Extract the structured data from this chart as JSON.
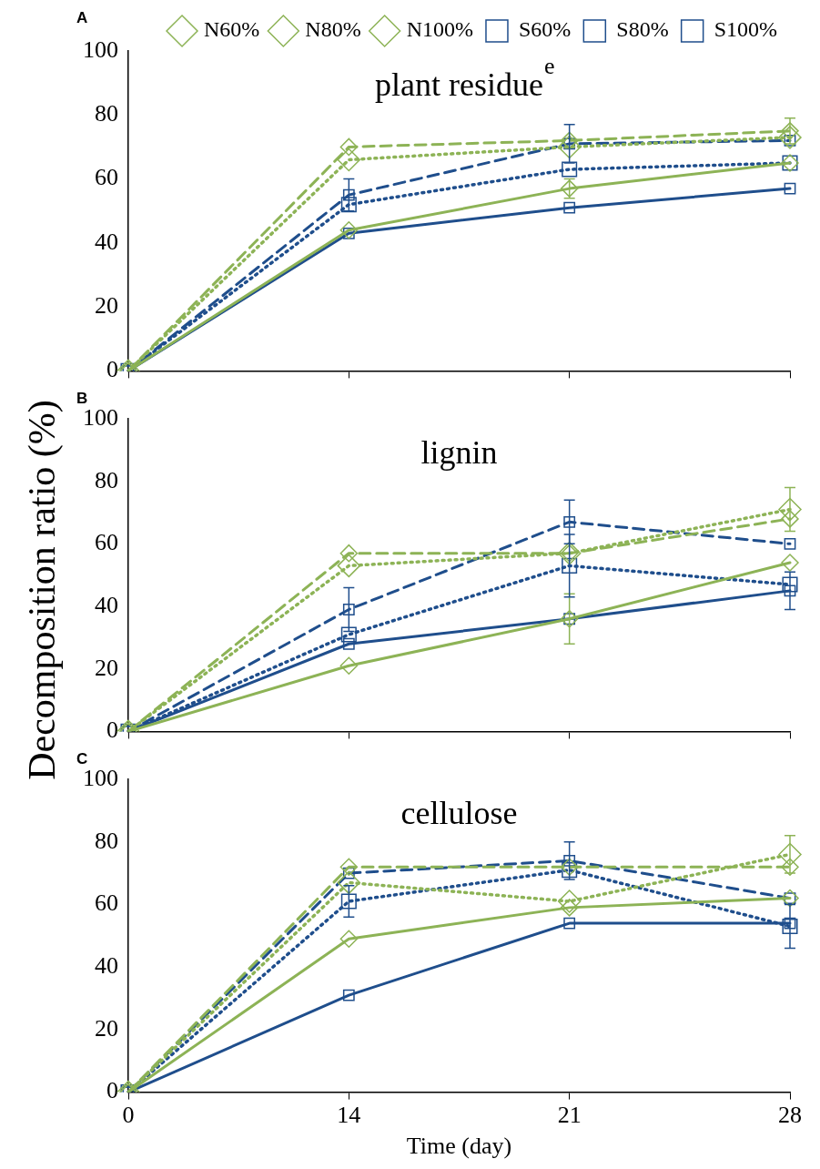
{
  "chart_data": [
    {
      "type": "line",
      "title": "plant residue",
      "annotations": [
        "A",
        "e"
      ],
      "categories": [
        "0",
        "14",
        "21",
        "28"
      ],
      "ylim": [
        0,
        100
      ],
      "yticks": [
        0,
        20,
        40,
        60,
        80,
        100
      ],
      "grid": false,
      "legend": "top",
      "tick_labels": "y",
      "series": [
        {
          "name": "N60%",
          "color": "#8db356",
          "marker": "diamond",
          "line_style": "solid",
          "values": [
            0,
            44,
            57,
            65
          ],
          "errors": [
            null,
            null,
            3,
            null
          ]
        },
        {
          "name": "N80%",
          "color": "#8db356",
          "marker": "diamond",
          "line_style": "dotted",
          "values": [
            0,
            66,
            70,
            73
          ],
          "errors": [
            null,
            null,
            null,
            null
          ]
        },
        {
          "name": "N100%",
          "color": "#8db356",
          "marker": "diamond",
          "line_style": "dashed",
          "values": [
            0,
            70,
            72,
            75
          ],
          "errors": [
            null,
            null,
            null,
            4
          ]
        },
        {
          "name": "S60%",
          "color": "#1f4e8c",
          "marker": "square",
          "line_style": "solid",
          "values": [
            0,
            43,
            51,
            57
          ],
          "errors": [
            null,
            null,
            null,
            null
          ]
        },
        {
          "name": "S80%",
          "color": "#1f4e8c",
          "marker": "square",
          "line_style": "dotted",
          "values": [
            0,
            52,
            63,
            65
          ],
          "errors": [
            null,
            null,
            null,
            null
          ]
        },
        {
          "name": "S100%",
          "color": "#1f4e8c",
          "marker": "square",
          "line_style": "dashed",
          "values": [
            0,
            55,
            71,
            72
          ],
          "errors": [
            null,
            5,
            6,
            null
          ]
        }
      ]
    },
    {
      "type": "line",
      "title": "lignin",
      "ylabel": "Decomposition ratio (%)",
      "annotations": [
        "B"
      ],
      "categories": [
        "0",
        "14",
        "21",
        "28"
      ],
      "ylim": [
        0,
        100
      ],
      "yticks": [
        0,
        20,
        40,
        60,
        80,
        100
      ],
      "grid": false,
      "tick_labels": "y",
      "series": [
        {
          "color": "#8db356",
          "marker": "diamond",
          "line_style": "solid",
          "values": [
            0,
            21,
            36,
            54
          ],
          "errors": [
            null,
            null,
            8,
            null
          ]
        },
        {
          "color": "#8db356",
          "marker": "diamond",
          "line_style": "dotted",
          "values": [
            0,
            53,
            57,
            71
          ],
          "errors": [
            null,
            null,
            null,
            7
          ]
        },
        {
          "color": "#8db356",
          "marker": "diamond",
          "line_style": "dashed",
          "values": [
            0,
            57,
            57,
            68
          ],
          "errors": [
            null,
            null,
            null,
            null
          ]
        },
        {
          "color": "#1f4e8c",
          "marker": "square",
          "line_style": "solid",
          "values": [
            0,
            28,
            36,
            45
          ],
          "errors": [
            null,
            null,
            null,
            6
          ]
        },
        {
          "color": "#1f4e8c",
          "marker": "square",
          "line_style": "dotted",
          "values": [
            0,
            31,
            53,
            47
          ],
          "errors": [
            null,
            null,
            10,
            null
          ]
        },
        {
          "color": "#1f4e8c",
          "marker": "square",
          "line_style": "dashed",
          "values": [
            0,
            39,
            67,
            60
          ],
          "errors": [
            null,
            7,
            7,
            null
          ]
        }
      ]
    },
    {
      "type": "line",
      "title": "cellulose",
      "xlabel": "Time (day)",
      "annotations": [
        "C"
      ],
      "categories": [
        "0",
        "14",
        "21",
        "28"
      ],
      "ylim": [
        0,
        100
      ],
      "yticks": [
        0,
        20,
        40,
        60,
        80,
        100
      ],
      "grid": false,
      "series": [
        {
          "color": "#8db356",
          "marker": "diamond",
          "line_style": "solid",
          "values": [
            0,
            49,
            59,
            62
          ],
          "errors": [
            null,
            null,
            null,
            null
          ]
        },
        {
          "color": "#8db356",
          "marker": "diamond",
          "line_style": "dotted",
          "values": [
            0,
            67,
            61,
            76
          ],
          "errors": [
            null,
            null,
            null,
            6
          ]
        },
        {
          "color": "#8db356",
          "marker": "diamond",
          "line_style": "dashed",
          "values": [
            0,
            72,
            72,
            72
          ],
          "errors": [
            null,
            null,
            null,
            null
          ]
        },
        {
          "color": "#1f4e8c",
          "marker": "square",
          "line_style": "solid",
          "values": [
            0,
            31,
            54,
            54
          ],
          "errors": [
            null,
            null,
            null,
            null
          ]
        },
        {
          "color": "#1f4e8c",
          "marker": "square",
          "line_style": "dotted",
          "values": [
            0,
            61,
            71,
            53
          ],
          "errors": [
            null,
            5,
            null,
            7
          ]
        },
        {
          "color": "#1f4e8c",
          "marker": "square",
          "line_style": "dashed",
          "values": [
            0,
            70,
            74,
            62
          ],
          "errors": [
            null,
            null,
            6,
            null
          ]
        }
      ]
    }
  ]
}
